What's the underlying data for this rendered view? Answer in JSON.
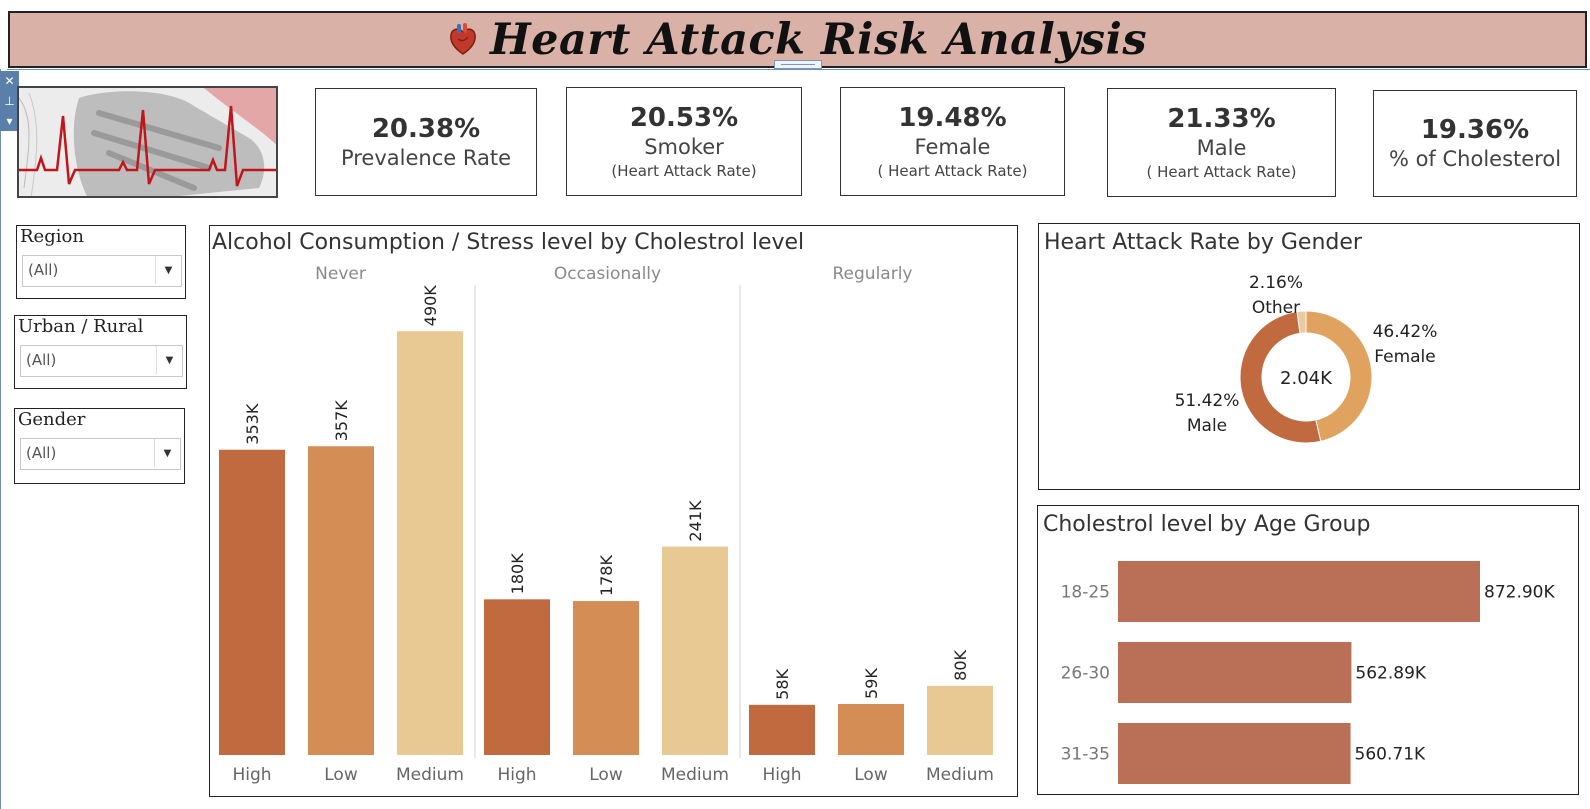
{
  "header": {
    "title": "Heart Attack Risk Analysis"
  },
  "kpis": [
    {
      "value": "20.38%",
      "label": "Prevalence Rate",
      "sub": ""
    },
    {
      "value": "20.53%",
      "label": "Smoker",
      "sub": "(Heart Attack Rate)"
    },
    {
      "value": "19.48%",
      "label": "Female",
      "sub": "( Heart Attack Rate)"
    },
    {
      "value": "21.33%",
      "label": "Male",
      "sub": "( Heart Attack Rate)"
    },
    {
      "value": "19.36%",
      "label": "% of Cholesterol",
      "sub": ""
    }
  ],
  "filters": [
    {
      "title": "Region",
      "value": "(All)"
    },
    {
      "title": "Urban / Rural",
      "value": "(All)"
    },
    {
      "title": "Gender",
      "value": "(All)"
    }
  ],
  "colors": {
    "high": "#c16a40",
    "low": "#d48d54",
    "medium": "#e9c993",
    "age_bar": "#b97056",
    "donut_male": "#c16a40",
    "donut_female": "#e0a35f",
    "donut_other": "#eec9a0",
    "title_bg": "#d9b1a6"
  },
  "chart_data": [
    {
      "type": "bar",
      "title": "Alcohol Consumption / Stress level by Cholestrol level",
      "groups": [
        "Never",
        "Occasionally",
        "Regularly"
      ],
      "categories": [
        "High",
        "Low",
        "Medium"
      ],
      "values": [
        [
          353000,
          357000,
          490000
        ],
        [
          180000,
          178000,
          241000
        ],
        [
          58000,
          59000,
          80000
        ]
      ],
      "labels": [
        [
          "353K",
          "357K",
          "490K"
        ],
        [
          "180K",
          "178K",
          "241K"
        ],
        [
          "58K",
          "59K",
          "80K"
        ]
      ],
      "ylim": [
        0,
        540000
      ],
      "grid": false
    },
    {
      "type": "pie",
      "title": "Heart Attack Rate by Gender",
      "center_label": "2.04K",
      "slices": [
        {
          "name": "Female",
          "value": 46.42,
          "label": "46.42%"
        },
        {
          "name": "Male",
          "value": 51.42,
          "label": "51.42%"
        },
        {
          "name": "Other",
          "value": 2.16,
          "label": "2.16%"
        }
      ]
    },
    {
      "type": "bar",
      "orientation": "horizontal",
      "title": "Cholestrol level by Age Group",
      "categories": [
        "18-25",
        "26-30",
        "31-35"
      ],
      "values": [
        872900,
        562890,
        560710
      ],
      "labels": [
        "872.90K",
        "562.89K",
        "560.71K"
      ],
      "xlim": [
        0,
        872900
      ]
    }
  ]
}
